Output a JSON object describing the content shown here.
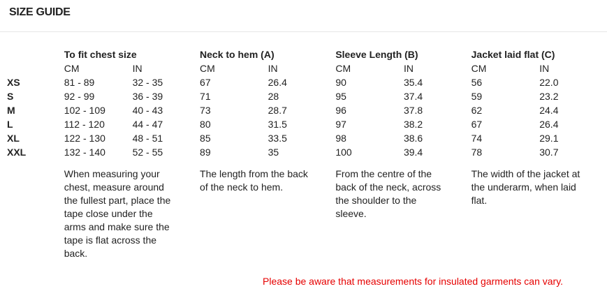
{
  "title": "SIZE GUIDE",
  "groups": [
    "To fit chest size",
    "Neck to hem (A)",
    "Sleeve Length (B)",
    "Jacket laid flat (C)"
  ],
  "units": [
    "CM",
    "IN"
  ],
  "rows": [
    {
      "size": "XS",
      "values": [
        "81 - 89",
        "32 - 35",
        "67",
        "26.4",
        "90",
        "35.4",
        "56",
        "22.0"
      ]
    },
    {
      "size": "S",
      "values": [
        "92 - 99",
        "36 - 39",
        "71",
        "28",
        "95",
        "37.4",
        "59",
        "23.2"
      ]
    },
    {
      "size": "M",
      "values": [
        "102 - 109",
        "40 - 43",
        "73",
        "28.7",
        "96",
        "37.8",
        "62",
        "24.4"
      ]
    },
    {
      "size": "L",
      "values": [
        "112 - 120",
        "44 - 47",
        "80",
        "31.5",
        "97",
        "38.2",
        "67",
        "26.4"
      ]
    },
    {
      "size": "XL",
      "values": [
        "122 - 130",
        "48 - 51",
        "85",
        "33.5",
        "98",
        "38.6",
        "74",
        "29.1"
      ]
    },
    {
      "size": "XXL",
      "values": [
        "132 - 140",
        "52 - 55",
        "89",
        "35",
        "100",
        "39.4",
        "78",
        "30.7"
      ]
    }
  ],
  "descriptions": [
    "When measuring your chest, measure around the fullest part, place the tape close under the arms and make sure the tape is flat across the back.",
    "The length from the back of the neck to hem.",
    "From the centre of the back of the neck, across the shoulder to the sleeve.",
    "The width of the jacket at the underarm, when laid flat."
  ],
  "note": "Please be aware that measurements for insulated garments can vary.",
  "colors": {
    "note": "#e60000"
  }
}
